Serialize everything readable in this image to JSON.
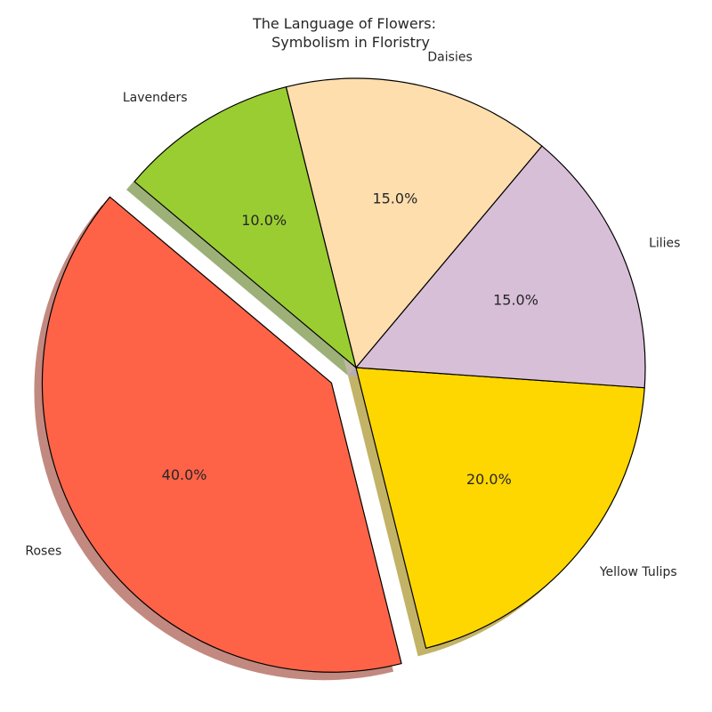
{
  "chart_data": {
    "type": "pie",
    "title_lines": [
      "The Language of Flowers:",
      "Symbolism in Floristry"
    ],
    "start_angle_deg": 140,
    "explode_label": "Roses",
    "shadow": true,
    "slices": [
      {
        "label": "Roses",
        "value": 40,
        "pct_label": "40.0%",
        "color": "#ff6347"
      },
      {
        "label": "Yellow Tulips",
        "value": 20,
        "pct_label": "20.0%",
        "color": "#ffd700"
      },
      {
        "label": "Lilies",
        "value": 15,
        "pct_label": "15.0%",
        "color": "#d8bfd8"
      },
      {
        "label": "Daisies",
        "value": 15,
        "pct_label": "15.0%",
        "color": "#ffdead"
      },
      {
        "label": "Lavenders",
        "value": 10,
        "pct_label": "10.0%",
        "color": "#9acd32"
      }
    ]
  }
}
